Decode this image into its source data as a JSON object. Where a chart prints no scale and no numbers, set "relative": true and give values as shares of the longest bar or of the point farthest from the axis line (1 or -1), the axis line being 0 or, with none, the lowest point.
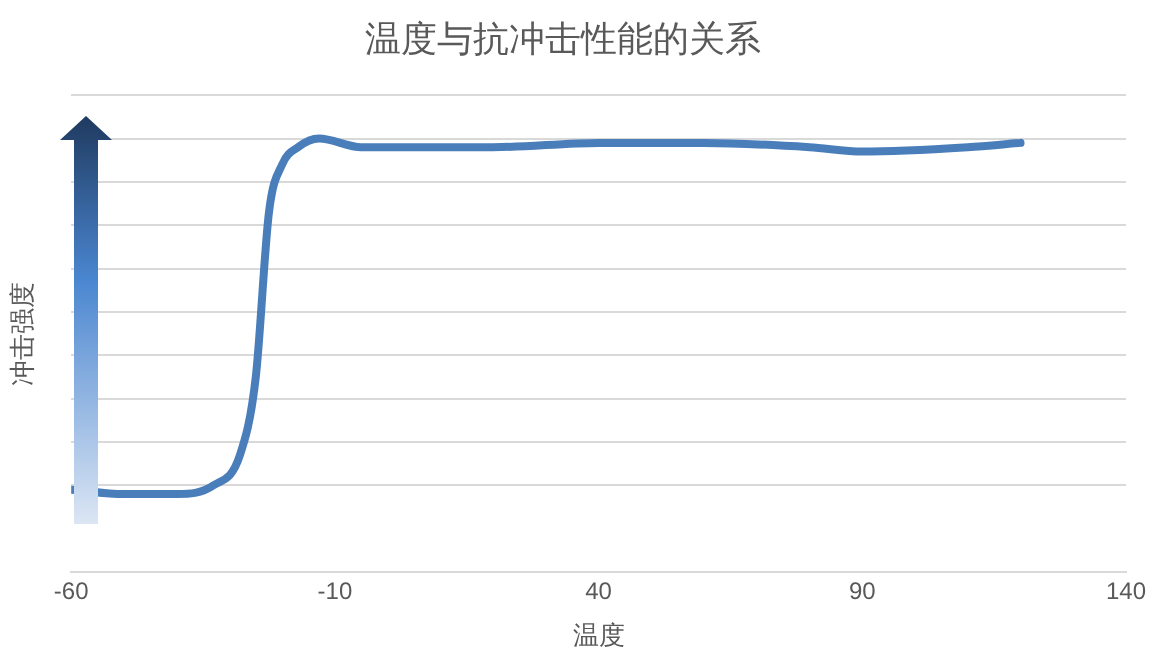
{
  "chart_data": {
    "type": "line",
    "title": "温度与抗冲击性能的关系",
    "xlabel": "温度",
    "ylabel": "冲击强度",
    "relative": true,
    "grid": "y",
    "legend": false,
    "marker": "none",
    "line_style": "solid",
    "xlim": [
      -60,
      140
    ],
    "xticks": [
      -60,
      -10,
      40,
      90,
      140
    ],
    "x": [
      -60,
      -50,
      -40,
      -33,
      -28,
      -25,
      -22.5,
      -20,
      -17,
      -13,
      -5,
      0,
      20,
      40,
      60,
      80,
      90,
      110,
      120
    ],
    "series": [
      {
        "color": "#4a7ebb",
        "values": [
          0.19,
          0.18,
          0.18,
          0.2,
          0.27,
          0.45,
          0.83,
          0.94,
          0.98,
          1,
          0.98,
          0.98,
          0.98,
          0.99,
          0.99,
          0.98,
          0.97,
          0.98,
          0.99
        ]
      }
    ]
  }
}
